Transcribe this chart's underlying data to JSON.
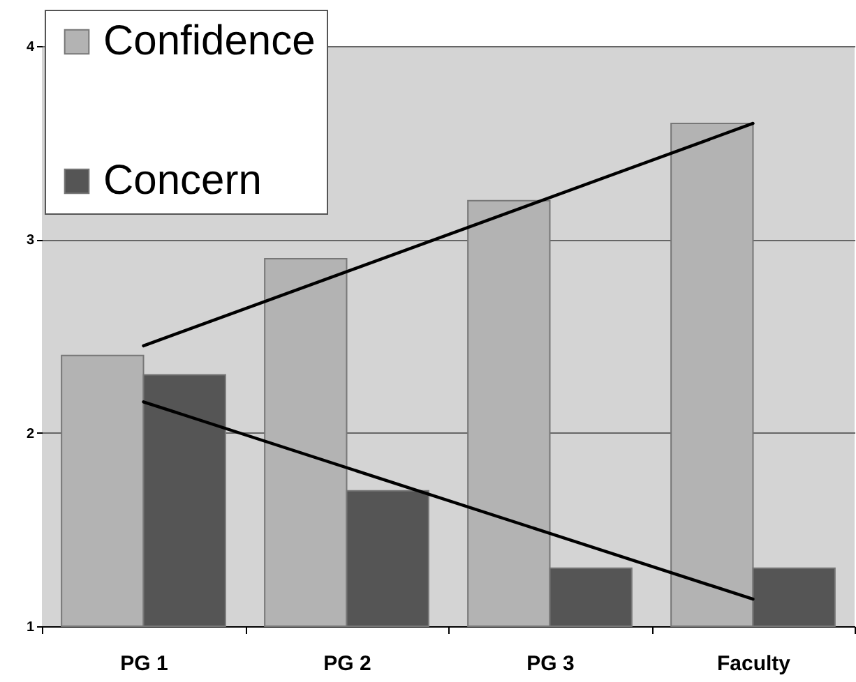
{
  "chart_data": {
    "type": "bar",
    "categories": [
      "PG 1",
      "PG 2",
      "PG 3",
      "Faculty"
    ],
    "series": [
      {
        "name": "Confidence",
        "color": "#b3b3b3",
        "values": [
          2.4,
          2.9,
          3.2,
          3.6
        ]
      },
      {
        "name": "Concern",
        "color": "#555555",
        "values": [
          2.3,
          1.7,
          1.3,
          1.3
        ]
      },
      {
        "type": "line",
        "color": "#000000",
        "x": [
          "PG 1",
          "Faculty"
        ],
        "values": [
          2.45,
          3.6
        ]
      },
      {
        "type": "line",
        "color": "#000000",
        "x": [
          "PG 1",
          "Faculty"
        ],
        "values": [
          2.16,
          1.14
        ]
      }
    ],
    "ylim": [
      1,
      4
    ],
    "yticks": [
      1,
      2,
      3,
      4
    ],
    "grid": "y",
    "legend": "top left"
  }
}
